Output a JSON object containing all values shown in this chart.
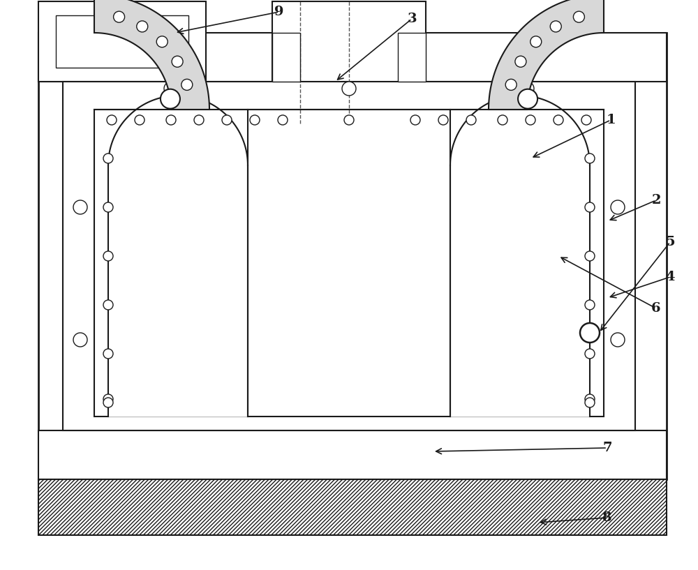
{
  "bg_color": "#ffffff",
  "lc": "#1a1a1a",
  "fig_width": 10.0,
  "fig_height": 8.17,
  "dpi": 100
}
